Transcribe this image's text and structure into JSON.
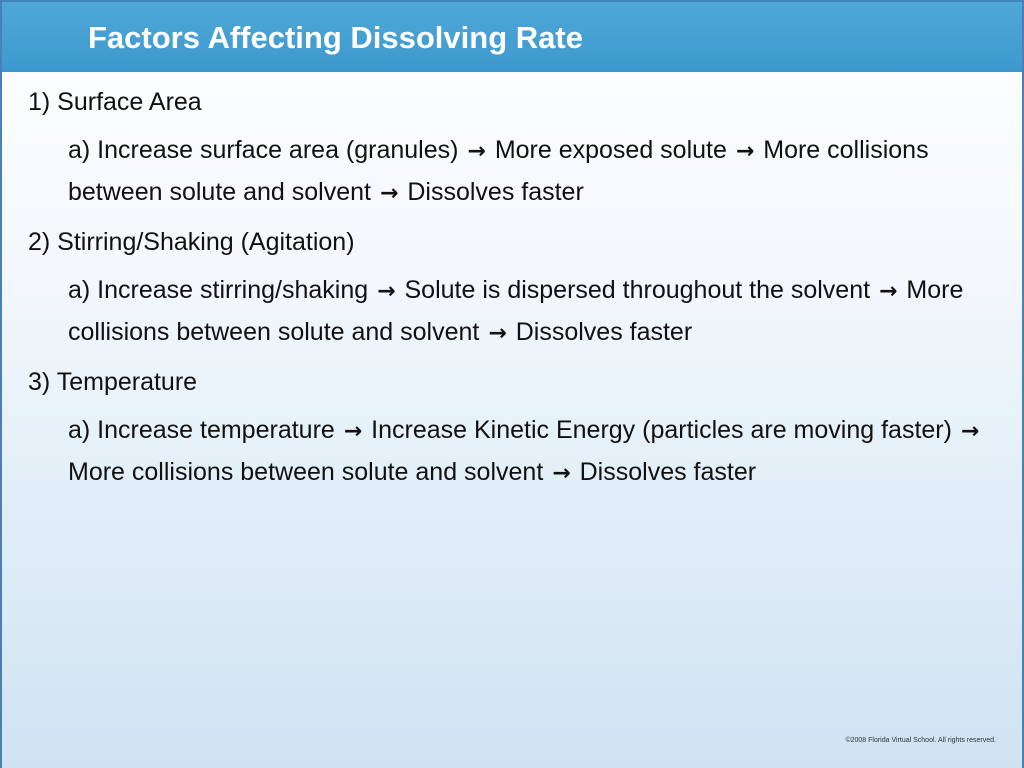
{
  "slide": {
    "title": "Factors Affecting Dissolving Rate",
    "arrow_glyph": "→",
    "sections": [
      {
        "heading": "1) Surface Area",
        "detail_parts": [
          "a) Increase surface area (granules)",
          "More exposed solute",
          "More collisions between solute and solvent",
          "Dissolves faster"
        ]
      },
      {
        "heading": "2) Stirring/Shaking (Agitation)",
        "detail_parts": [
          "a) Increase stirring/shaking",
          "Solute is dispersed throughout the solvent",
          "More collisions between solute and solvent",
          "Dissolves faster"
        ]
      },
      {
        "heading": "3) Temperature",
        "detail_parts": [
          "a) Increase temperature",
          "Increase Kinetic Energy (particles are moving faster)",
          "More collisions between solute and solvent",
          "Dissolves faster"
        ]
      }
    ],
    "copyright": "©2008 Florida Virtual School. All rights reserved."
  },
  "colors": {
    "title_bar": "#3d98cd",
    "title_text": "#ffffff",
    "body_text": "#111111"
  }
}
